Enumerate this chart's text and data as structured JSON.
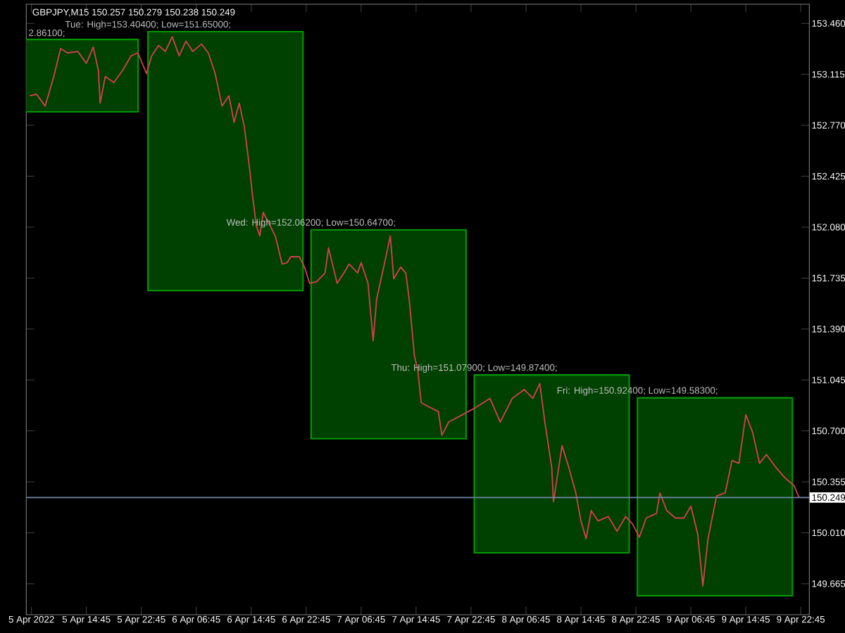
{
  "chart_data": {
    "type": "bar",
    "title": "GBPJPY,M15 150.257 150.279 150.238 150.249",
    "series": [
      {
        "color": "#004000",
        "base": [
          152.861,
          151.65,
          150.647,
          149.874,
          149.583
        ],
        "x": [
          "2022-04-05T11:00",
          "2022-04-06T11:00",
          "2022-04-07T10:45",
          "2022-04-08T10:30",
          "2022-04-09T10:15"
        ],
        "values": [
          0.49,
          1.754,
          1.415,
          1.205,
          1.341
        ]
      },
      {
        "type": "line",
        "color": "#d0404e",
        "x": [
          "2022-04-05T06:30",
          "2022-04-05T07:30",
          "2022-04-05T08:45",
          "2022-04-05T09:30",
          "2022-04-05T10:00",
          "2022-04-05T11:00",
          "2022-04-05T12:00",
          "2022-04-05T13:30",
          "2022-04-05T14:45",
          "2022-04-05T15:45",
          "2022-04-05T16:30",
          "2022-04-05T16:45",
          "2022-04-05T17:30",
          "2022-04-05T18:45",
          "2022-04-05T20:00",
          "2022-04-05T21:15",
          "2022-04-05T22:15",
          "2022-04-05T23:30",
          "2022-04-06T00:15",
          "2022-04-06T01:15",
          "2022-04-06T02:15",
          "2022-04-06T03:15",
          "2022-04-06T04:15",
          "2022-04-06T05:15",
          "2022-04-06T06:15",
          "2022-04-06T07:30",
          "2022-04-06T08:30",
          "2022-04-06T09:30",
          "2022-04-06T10:30",
          "2022-04-06T11:30",
          "2022-04-06T12:15",
          "2022-04-06T13:00",
          "2022-04-06T13:45",
          "2022-04-06T14:30",
          "2022-04-06T15:00",
          "2022-04-06T15:30",
          "2022-04-06T16:00",
          "2022-04-06T16:30",
          "2022-04-06T17:30",
          "2022-04-06T18:15",
          "2022-04-06T19:15",
          "2022-04-06T20:00",
          "2022-04-06T20:30",
          "2022-04-06T21:45",
          "2022-04-06T22:30",
          "2022-04-06T23:15",
          "2022-04-07T00:15",
          "2022-04-07T01:30",
          "2022-04-07T02:00",
          "2022-04-07T03:15",
          "2022-04-07T04:15",
          "2022-04-07T05:00",
          "2022-04-07T06:15",
          "2022-04-07T06:45",
          "2022-04-07T07:45",
          "2022-04-07T08:30",
          "2022-04-07T09:00",
          "2022-04-07T10:30",
          "2022-04-07T11:00",
          "2022-04-07T11:30",
          "2022-04-07T12:30",
          "2022-04-07T13:15",
          "2022-04-07T13:45",
          "2022-04-07T14:30",
          "2022-04-07T15:00",
          "2022-04-07T15:30",
          "2022-04-07T18:00",
          "2022-04-07T18:30",
          "2022-04-07T19:30",
          "2022-04-07T21:30",
          "2022-04-07T23:30",
          "2022-04-08T01:30",
          "2022-04-08T03:00",
          "2022-04-08T04:45",
          "2022-04-08T06:30",
          "2022-04-08T07:45",
          "2022-04-08T08:45",
          "2022-04-08T09:30",
          "2022-04-08T10:30",
          "2022-04-08T10:45",
          "2022-04-08T12:00",
          "2022-04-08T13:00",
          "2022-04-08T14:00",
          "2022-04-08T14:45",
          "2022-04-08T15:30",
          "2022-04-08T16:15",
          "2022-04-08T17:15",
          "2022-04-08T18:45",
          "2022-04-08T20:00",
          "2022-04-08T21:15",
          "2022-04-08T22:15",
          "2022-04-08T23:15",
          "2022-04-09T00:15",
          "2022-04-09T01:45",
          "2022-04-09T02:15",
          "2022-04-09T03:15",
          "2022-04-09T04:30",
          "2022-04-09T05:45",
          "2022-04-09T06:45",
          "2022-04-09T07:45",
          "2022-04-09T08:30",
          "2022-04-09T09:15",
          "2022-04-09T10:30",
          "2022-04-09T11:45",
          "2022-04-09T12:45",
          "2022-04-09T13:45",
          "2022-04-09T14:45",
          "2022-04-09T15:45",
          "2022-04-09T16:45",
          "2022-04-09T17:45",
          "2022-04-09T19:00",
          "2022-04-09T20:30",
          "2022-04-09T21:45",
          "2022-04-09T22:30"
        ],
        "values": [
          152.97,
          152.98,
          152.9,
          153.02,
          153.1,
          153.29,
          153.26,
          153.27,
          153.19,
          153.3,
          153.14,
          152.92,
          153.1,
          153.06,
          153.14,
          153.24,
          153.26,
          153.12,
          153.24,
          153.31,
          153.27,
          153.37,
          153.24,
          153.34,
          153.27,
          153.32,
          153.26,
          153.12,
          152.9,
          152.97,
          152.79,
          152.92,
          152.76,
          152.48,
          152.27,
          152.09,
          152.02,
          152.18,
          152.09,
          152.02,
          151.83,
          151.84,
          151.88,
          151.88,
          151.81,
          151.7,
          151.71,
          151.77,
          151.94,
          151.7,
          151.77,
          151.83,
          151.77,
          151.84,
          151.7,
          151.31,
          151.59,
          151.91,
          152.02,
          151.73,
          151.81,
          151.77,
          151.59,
          151.21,
          151.11,
          150.89,
          150.83,
          150.67,
          150.76,
          150.81,
          150.86,
          150.92,
          150.76,
          150.92,
          150.98,
          150.92,
          151.02,
          150.76,
          150.45,
          150.22,
          150.6,
          150.45,
          150.28,
          150.09,
          149.97,
          150.16,
          150.09,
          150.12,
          150.02,
          150.12,
          150.07,
          149.98,
          150.11,
          150.14,
          150.28,
          150.16,
          150.11,
          150.11,
          150.19,
          150.0,
          149.65,
          149.97,
          150.26,
          150.28,
          150.5,
          150.48,
          150.81,
          150.69,
          150.48,
          150.54,
          150.46,
          150.38,
          150.33,
          150.25
        ]
      }
    ],
    "xlim": [
      "2022-04-05T06:00",
      "2022-04-10T00:00"
    ],
    "xticks": [
      {
        "value": "2022-04-05T06:45",
        "label": "5 Apr 2022"
      },
      {
        "value": "2022-04-05T14:45",
        "label": "5 Apr 14:45"
      },
      {
        "value": "2022-04-05T22:45",
        "label": "5 Apr 22:45"
      },
      {
        "value": "2022-04-06T06:45",
        "label": "6 Apr 06:45"
      },
      {
        "value": "2022-04-06T14:45",
        "label": "6 Apr 14:45"
      },
      {
        "value": "2022-04-06T22:45",
        "label": "6 Apr 22:45"
      },
      {
        "value": "2022-04-07T06:45",
        "label": "7 Apr 06:45"
      },
      {
        "value": "2022-04-07T14:45",
        "label": "7 Apr 14:45"
      },
      {
        "value": "2022-04-07T22:45",
        "label": "7 Apr 22:45"
      },
      {
        "value": "2022-04-08T06:45",
        "label": "8 Apr 06:45"
      },
      {
        "value": "2022-04-08T14:45",
        "label": "8 Apr 14:45"
      },
      {
        "value": "2022-04-08T22:45",
        "label": "8 Apr 22:45"
      },
      {
        "value": "2022-04-09T06:45",
        "label": "9 Apr 06:45"
      },
      {
        "value": "2022-04-09T14:45",
        "label": "9 Apr 14:45"
      },
      {
        "value": "2022-04-09T22:45",
        "label": "9 Apr 22:45"
      }
    ],
    "ylim": [
      149.455,
      153.59
    ],
    "yticks": [
      {
        "value": 149.665,
        "label": "149.665"
      },
      {
        "value": 150.01,
        "label": "150.010"
      },
      {
        "value": 150.355,
        "label": "150.355"
      },
      {
        "value": 150.7,
        "label": "150.700"
      },
      {
        "value": 151.045,
        "label": "151.045"
      },
      {
        "value": 151.39,
        "label": "151.390"
      },
      {
        "value": 151.735,
        "label": "151.735"
      },
      {
        "value": 152.08,
        "label": "152.080"
      },
      {
        "value": 152.425,
        "label": "152.425"
      },
      {
        "value": 152.77,
        "label": "152.770"
      },
      {
        "value": 153.115,
        "label": "153.115"
      },
      {
        "value": 153.46,
        "label": "153.460"
      }
    ],
    "ref_lines": [
      {
        "axis": "y",
        "value": 150.249,
        "label": "150.249",
        "color": "#6f86a8"
      }
    ],
    "annotations": [
      "2.86100;",
      "Tue:  High=153.40400;  Low=151.65000;",
      "Wed:  High=152.06200;  Low=150.64700;",
      "Thu:  High=151.07900;  Low=149.87400;",
      "Fri:  High=150.92400;  Low=149.58300;"
    ]
  }
}
